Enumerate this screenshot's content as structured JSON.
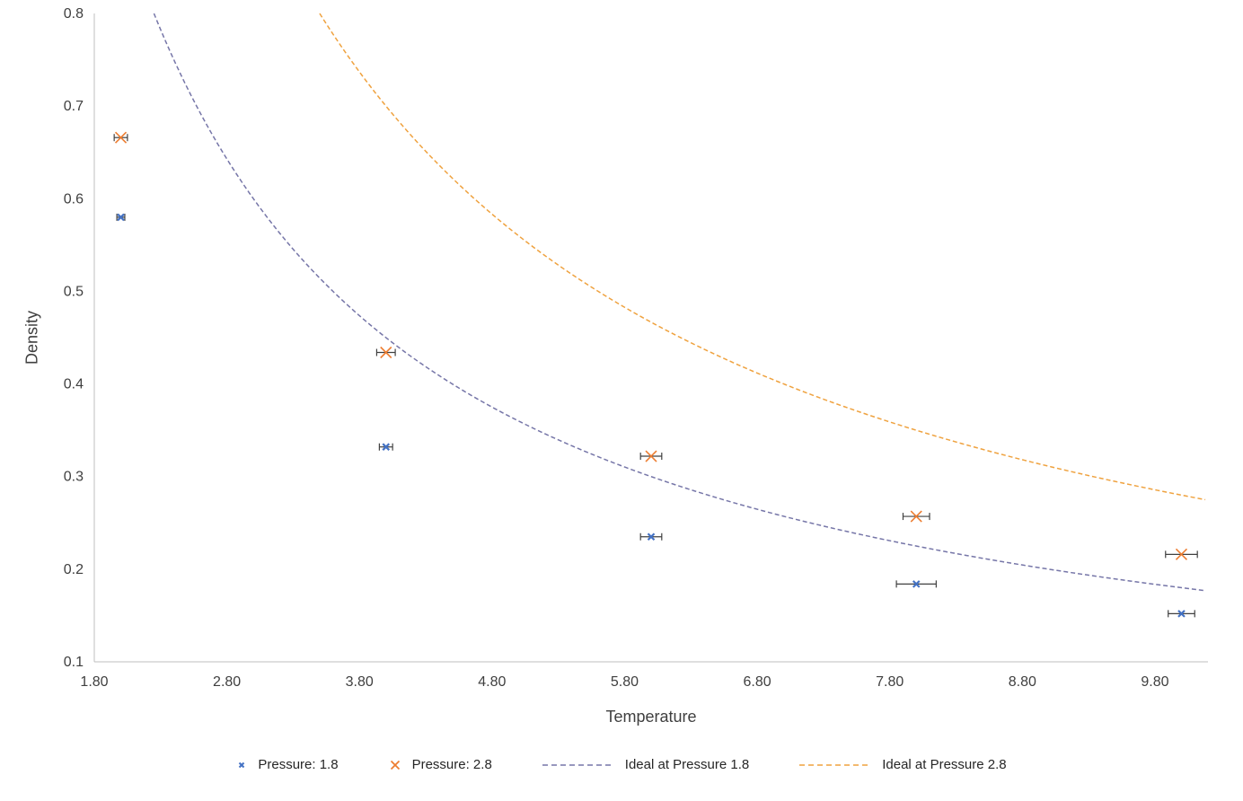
{
  "chart_data": {
    "type": "scatter",
    "title": "",
    "xlabel": "Temperature",
    "ylabel": "Density",
    "xlim": [
      1.8,
      10.2
    ],
    "ylim": [
      0.1,
      0.8
    ],
    "x_ticks": [
      1.8,
      2.8,
      3.8,
      4.8,
      5.8,
      6.8,
      7.8,
      8.8,
      9.8
    ],
    "x_tick_labels": [
      "1.80",
      "2.80",
      "3.80",
      "4.80",
      "5.80",
      "6.80",
      "7.80",
      "8.80",
      "9.80"
    ],
    "y_ticks": [
      0.1,
      0.2,
      0.3,
      0.4,
      0.5,
      0.6,
      0.7,
      0.8
    ],
    "y_tick_labels": [
      "0.1",
      "0.2",
      "0.3",
      "0.4",
      "0.5",
      "0.6",
      "0.7",
      "0.8"
    ],
    "grid": false,
    "legend_position": "bottom",
    "axis_color": "#BFBFBF",
    "text_color": "#3F3F3F",
    "error_bar_color": "#404040",
    "series": [
      {
        "name": "Pressure: 1.8",
        "type": "scatter",
        "marker": "x",
        "color": "#4472C4",
        "marker_size": 7,
        "marker_stroke": 2.2,
        "x": [
          2.0,
          4.0,
          6.0,
          8.0,
          10.0
        ],
        "y": [
          0.58,
          0.332,
          0.235,
          0.184,
          0.152
        ],
        "x_err": [
          0.03,
          0.05,
          0.08,
          0.15,
          0.1
        ]
      },
      {
        "name": "Pressure: 2.8",
        "type": "scatter",
        "marker": "x",
        "color": "#ED7D31",
        "marker_size": 12,
        "marker_stroke": 1.6,
        "x": [
          2.0,
          4.0,
          6.0,
          8.0,
          10.0
        ],
        "y": [
          0.666,
          0.434,
          0.322,
          0.257,
          0.216
        ],
        "x_err": [
          0.05,
          0.07,
          0.08,
          0.1,
          0.12
        ]
      },
      {
        "name": "Ideal at Pressure 1.8",
        "type": "line",
        "line_style": "dashed",
        "color": "#7676A8",
        "relation": "density = pressure / temperature",
        "pressure": 1.8,
        "t_range": [
          2.25,
          10.2
        ]
      },
      {
        "name": "Ideal at Pressure 2.8",
        "type": "line",
        "line_style": "dashed",
        "color": "#EFA23F",
        "relation": "density = pressure / temperature",
        "pressure": 2.8,
        "t_range": [
          3.5,
          10.2
        ]
      }
    ]
  }
}
